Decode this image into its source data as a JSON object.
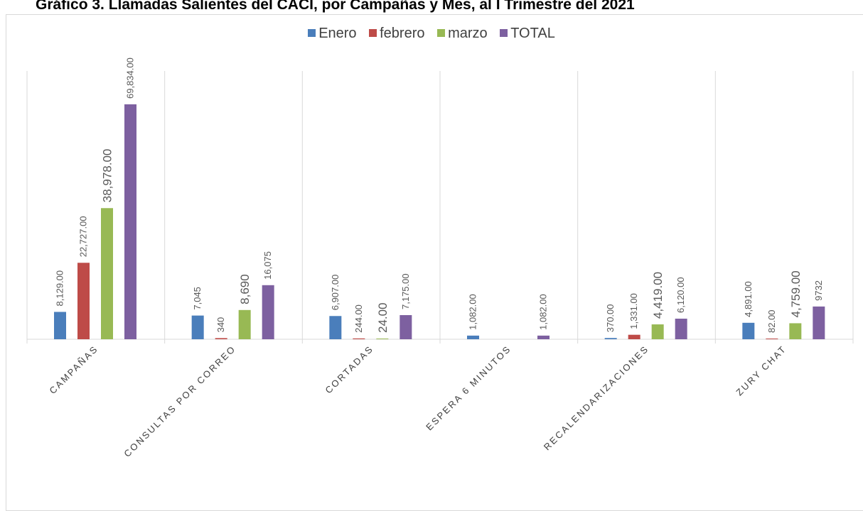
{
  "chart_data": {
    "type": "bar",
    "title": "Gráfico 3. Llamadas Salientes del CACI, por Campañas y Mes, al I Trimestre del 2021",
    "categories": [
      "CAMPAÑAS",
      "CONSULTAS POR CORREO",
      "CORTADAS",
      "ESPERA 6 MINUTOS",
      "RECALENDARIZACIONES",
      "ZURY CHAT"
    ],
    "series": [
      {
        "name": "Enero",
        "color": "#4a7ebb",
        "values": [
          8129,
          7045,
          6907,
          1082,
          370,
          4891
        ],
        "labels": [
          "8,129.00",
          "7,045",
          "6,907.00",
          "1,082.00",
          "370.00",
          "4,891.00"
        ]
      },
      {
        "name": "febrero",
        "color": "#be4b48",
        "values": [
          22727,
          340,
          244,
          null,
          1331,
          82
        ],
        "labels": [
          "22,727.00",
          "340",
          "244.00",
          "",
          "1,331.00",
          "82.00"
        ]
      },
      {
        "name": "marzo",
        "color": "#98b954",
        "values": [
          38978,
          8690,
          24,
          null,
          4419,
          4759
        ],
        "labels": [
          "38,978.00",
          "8,690",
          "24.00",
          "",
          "4,419.00",
          "4,759.00"
        ]
      },
      {
        "name": "TOTAL",
        "color": "#7d60a0",
        "values": [
          69834,
          16075,
          7175,
          1082,
          6120,
          9732
        ],
        "labels": [
          "69,834.00",
          "16,075",
          "7,175.00",
          "1,082.00",
          "6,120.00",
          "9732"
        ]
      }
    ],
    "ylim": [
      0,
      80000
    ],
    "grid": "vertical-category-separators",
    "legend": "top-center"
  }
}
